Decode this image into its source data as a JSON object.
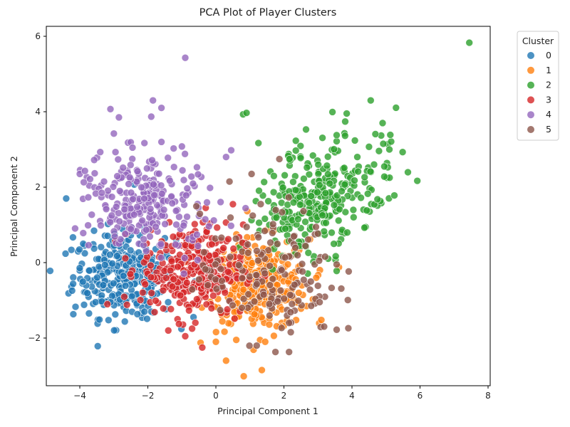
{
  "chart_data": {
    "type": "scatter",
    "title": "PCA Plot of Player Clusters",
    "xlabel": "Principal Component 1",
    "ylabel": "Principal Component 2",
    "xlim": [
      -5.0,
      8.05
    ],
    "ylim": [
      -3.25,
      6.25
    ],
    "xticks": [
      -4,
      -2,
      0,
      2,
      4,
      6,
      8
    ],
    "xtick_labels": [
      "−4",
      "−2",
      "0",
      "2",
      "4",
      "6",
      "8"
    ],
    "yticks": [
      -2,
      0,
      2,
      4,
      6
    ],
    "ytick_labels": [
      "−2",
      "0",
      "2",
      "4",
      "6"
    ],
    "grid": false,
    "legend": {
      "title": "Cluster",
      "position": "outside upper right",
      "entries": [
        "0",
        "1",
        "2",
        "3",
        "4",
        "5"
      ]
    },
    "marker_alpha": 0.8,
    "series": [
      {
        "name": "0",
        "color": "#1f77b4",
        "center": [
          -2.7,
          -0.35
        ],
        "spread": [
          0.75,
          0.55
        ],
        "count": 330,
        "notable_points": [
          [
            -4.4,
            1.7
          ],
          [
            -4.2,
            0.67
          ],
          [
            -2.4,
            2.07
          ],
          [
            -1.9,
            -1.3
          ],
          [
            -2.1,
            -1.3
          ],
          [
            -3.9,
            0.5
          ],
          [
            -3.1,
            -1.05
          ],
          [
            -1.5,
            0.65
          ]
        ]
      },
      {
        "name": "1",
        "color": "#ff7f0e",
        "center": [
          1.25,
          -0.6
        ],
        "spread": [
          0.75,
          0.6
        ],
        "count": 330,
        "notable_points": [
          [
            1.35,
            -2.85
          ],
          [
            0.3,
            -2.6
          ],
          [
            3.1,
            -1.52
          ],
          [
            2.95,
            -0.4
          ],
          [
            0.0,
            -2.1
          ],
          [
            1.45,
            -2.1
          ],
          [
            0.6,
            -2.05
          ]
        ]
      },
      {
        "name": "2",
        "color": "#2ca02c",
        "center": [
          2.3,
          1.1
        ],
        "spread": [
          1.0,
          0.85
        ],
        "count": 300,
        "notable_points": [
          [
            7.45,
            5.83
          ],
          [
            4.55,
            4.3
          ],
          [
            0.8,
            3.93
          ],
          [
            0.9,
            3.97
          ],
          [
            4.9,
            3.7
          ],
          [
            2.65,
            3.53
          ],
          [
            3.55,
            3.38
          ],
          [
            5.1,
            3.0
          ],
          [
            4.5,
            3.07
          ],
          [
            2.35,
            3.23
          ],
          [
            2.35,
            2.97
          ],
          [
            1.25,
            3.17
          ],
          [
            4.95,
            2.55
          ],
          [
            4.65,
            2.6
          ],
          [
            4.95,
            2.28
          ],
          [
            3.55,
            -0.22
          ],
          [
            4.75,
            1.68
          ]
        ]
      },
      {
        "name": "3",
        "color": "#d62728",
        "center": [
          -0.7,
          -0.2
        ],
        "spread": [
          0.75,
          0.6
        ],
        "count": 330,
        "notable_points": [
          [
            -1.4,
            -1.8
          ],
          [
            -0.9,
            -1.95
          ],
          [
            -0.4,
            -2.25
          ],
          [
            -0.7,
            -1.75
          ],
          [
            -0.3,
            1.45
          ],
          [
            0.5,
            1.55
          ]
        ]
      },
      {
        "name": "4",
        "color": "#9467bd",
        "center": [
          -2.1,
          1.25
        ],
        "spread": [
          0.9,
          0.8
        ],
        "count": 260,
        "notable_points": [
          [
            -0.9,
            5.43
          ],
          [
            -1.85,
            4.3
          ],
          [
            -3.1,
            4.07
          ],
          [
            -1.9,
            3.87
          ],
          [
            -2.85,
            3.85
          ],
          [
            -3.0,
            3.42
          ],
          [
            -1.6,
            3.2
          ],
          [
            -2.1,
            3.17
          ],
          [
            -2.45,
            3.05
          ],
          [
            -1.0,
            3.08
          ],
          [
            -3.4,
            2.93
          ],
          [
            -2.95,
            2.93
          ],
          [
            -4.0,
            2.35
          ],
          [
            -3.85,
            2.43
          ],
          [
            -3.75,
            1.73
          ],
          [
            0.45,
            2.98
          ],
          [
            0.3,
            2.8
          ]
        ]
      },
      {
        "name": "5",
        "color": "#8c564b",
        "center": [
          1.5,
          -0.3
        ],
        "spread": [
          1.0,
          0.85
        ],
        "count": 150,
        "notable_points": [
          [
            3.55,
            -0.05
          ],
          [
            3.55,
            -1.78
          ],
          [
            3.4,
            -0.67
          ],
          [
            2.15,
            -2.37
          ],
          [
            1.75,
            -2.37
          ],
          [
            3.05,
            -1.05
          ],
          [
            0.4,
            2.15
          ],
          [
            1.05,
            2.35
          ],
          [
            1.2,
            -2.2
          ],
          [
            2.15,
            -1.6
          ]
        ]
      }
    ]
  },
  "plot": {
    "title": "PCA Plot of Player Clusters",
    "xlabel": "Principal Component 1",
    "ylabel": "Principal Component 2"
  },
  "legend": {
    "title": "Cluster",
    "items": [
      {
        "label": "0",
        "color": "#1f77b4"
      },
      {
        "label": "1",
        "color": "#ff7f0e"
      },
      {
        "label": "2",
        "color": "#2ca02c"
      },
      {
        "label": "3",
        "color": "#d62728"
      },
      {
        "label": "4",
        "color": "#9467bd"
      },
      {
        "label": "5",
        "color": "#8c564b"
      }
    ]
  }
}
